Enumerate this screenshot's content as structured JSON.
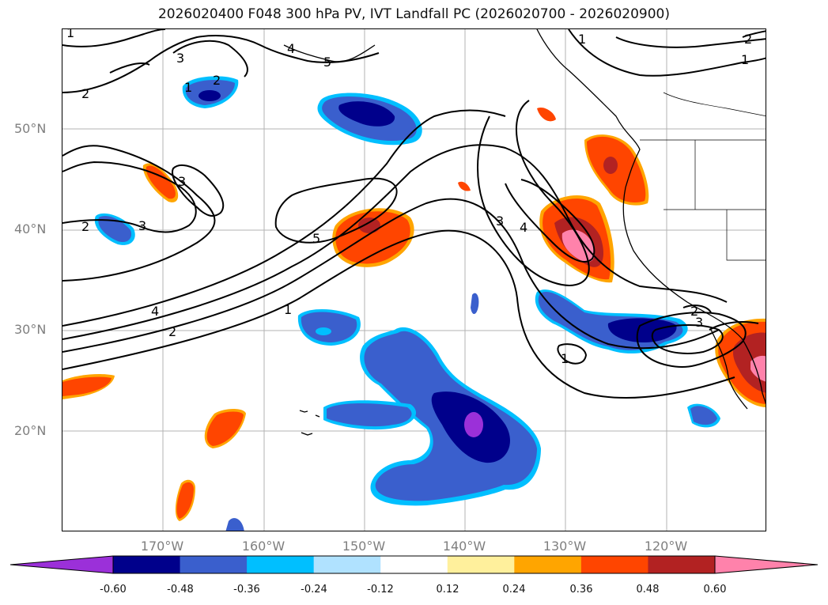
{
  "title": "2026020400 F048 300 hPa PV, IVT Landfall PC (2026020700 - 2026020900)",
  "lat_labels": [
    "50°N",
    "40°N",
    "30°N",
    "20°N"
  ],
  "lon_labels": [
    "170°W",
    "160°W",
    "150°W",
    "140°W",
    "130°W",
    "120°W"
  ],
  "contour_labels": [
    {
      "id": "c1",
      "text": "1"
    },
    {
      "id": "c2",
      "text": "2"
    },
    {
      "id": "c3",
      "text": "3"
    },
    {
      "id": "c4",
      "text": "4"
    },
    {
      "id": "c5",
      "text": "5"
    },
    {
      "id": "c6",
      "text": "1"
    },
    {
      "id": "c7",
      "text": "1"
    },
    {
      "id": "c8",
      "text": "2"
    },
    {
      "id": "c9",
      "text": "2"
    },
    {
      "id": "c10",
      "text": "3"
    },
    {
      "id": "c11",
      "text": "3"
    },
    {
      "id": "c12",
      "text": "4"
    },
    {
      "id": "c13",
      "text": "5"
    },
    {
      "id": "c14",
      "text": "2"
    },
    {
      "id": "c15",
      "text": "3"
    },
    {
      "id": "c16",
      "text": "1"
    },
    {
      "id": "c17",
      "text": "3"
    },
    {
      "id": "c18",
      "text": "1"
    },
    {
      "id": "c19",
      "text": "4"
    },
    {
      "id": "c20",
      "text": "2"
    },
    {
      "id": "c21",
      "text": "1"
    },
    {
      "id": "c22",
      "text": "2"
    }
  ],
  "colorbar": {
    "colors": [
      "#9b30d9",
      "#00008b",
      "#3a5fcd",
      "#00bfff",
      "#b0e2ff",
      "#ffffff",
      "#fff09c",
      "#ffa500",
      "#ff4500",
      "#b22222",
      "#ff82ab"
    ],
    "ticks": [
      "-0.60",
      "-0.48",
      "-0.36",
      "-0.24",
      "-0.12",
      "0.12",
      "0.24",
      "0.36",
      "0.48",
      "0.60"
    ]
  }
}
